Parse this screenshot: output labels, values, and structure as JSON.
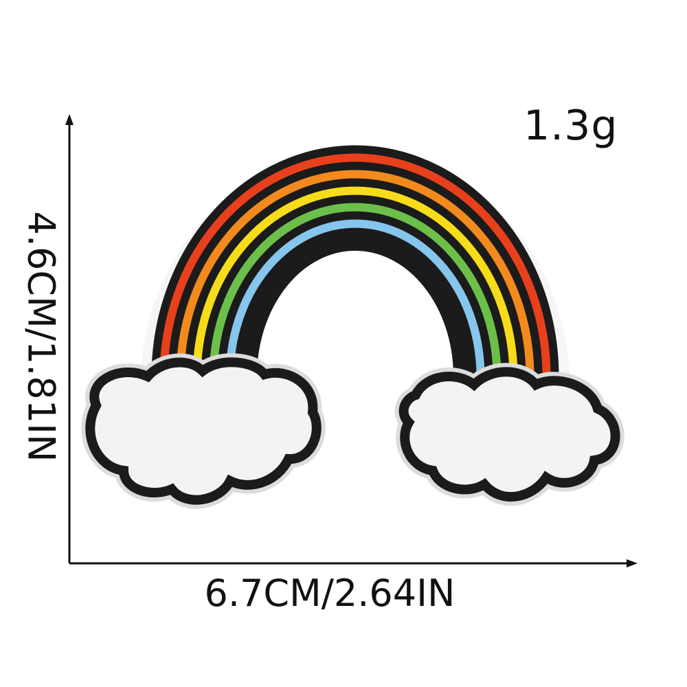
{
  "weight": "1.3g",
  "width_dimension": "6.7CM/2.64IN",
  "height_dimension": "4.6CM/1.81IN",
  "colors": {
    "felt": "#f6f6f6",
    "outline": "#1b1b1b",
    "bands": [
      "#1b1b1b",
      "#e8401c",
      "#1b1b1b",
      "#f28a1e",
      "#1b1b1b",
      "#f7dc1a",
      "#1b1b1b",
      "#6cc04a",
      "#1b1b1b",
      "#86c5ec",
      "#1b1b1b"
    ]
  }
}
